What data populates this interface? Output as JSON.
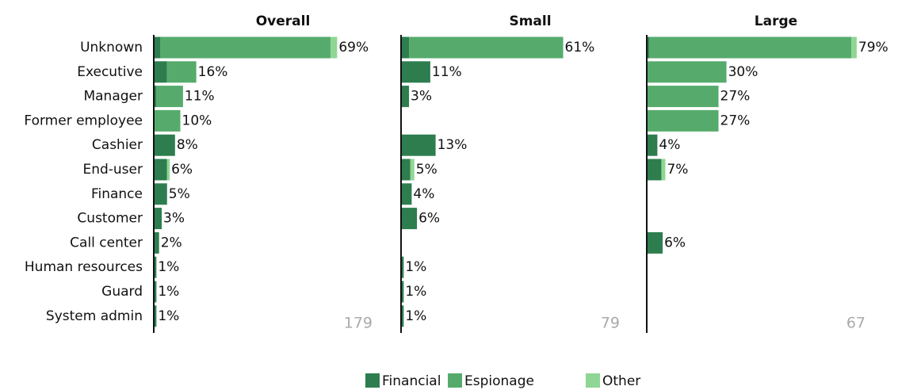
{
  "chart_data": [
    {
      "type": "bar",
      "title": "Overall",
      "n": 179,
      "categories": [
        "Unknown",
        "Executive",
        "Manager",
        "Former employee",
        "Cashier",
        "End-user",
        "Finance",
        "Customer",
        "Call center",
        "Human resources",
        "Guard",
        "System admin"
      ],
      "series": [
        {
          "name": "Financial",
          "color": "#2e7d4f",
          "values": [
            2.5,
            5,
            1,
            null,
            8,
            5,
            5,
            3,
            2,
            1,
            1,
            1
          ]
        },
        {
          "name": "Espionage",
          "color": "#56ab6c",
          "values": [
            64,
            11,
            10,
            10,
            null,
            null,
            null,
            null,
            null,
            null,
            null,
            null
          ]
        },
        {
          "name": "Other",
          "color": "#8fd694",
          "values": [
            2.5,
            null,
            null,
            null,
            null,
            1,
            null,
            null,
            null,
            null,
            null,
            null
          ]
        }
      ],
      "value_labels": [
        "69%",
        "16%",
        "11%",
        "10%",
        "8%",
        "6%",
        "5%",
        "3%",
        "2%",
        "1%",
        "1%",
        "1%"
      ],
      "xlim": [
        0,
        85
      ]
    },
    {
      "type": "bar",
      "title": "Small",
      "n": 79,
      "series": [
        {
          "values": [
            3,
            11,
            3,
            null,
            13,
            3.5,
            4,
            6,
            null,
            1,
            1,
            1
          ]
        },
        {
          "values": [
            58,
            null,
            null,
            null,
            null,
            null,
            null,
            null,
            null,
            null,
            null,
            null
          ]
        },
        {
          "values": [
            null,
            null,
            null,
            null,
            null,
            1.5,
            null,
            null,
            null,
            null,
            null,
            null
          ]
        }
      ],
      "value_labels": [
        "61%",
        "11%",
        "3%",
        null,
        "13%",
        "5%",
        "4%",
        "6%",
        null,
        "1%",
        "1%",
        "1%"
      ],
      "xlim": [
        0,
        85
      ]
    },
    {
      "type": "bar",
      "title": "Large",
      "n": 67,
      "series": [
        {
          "values": [
            1,
            null,
            null,
            null,
            4,
            5.5,
            null,
            null,
            6,
            null,
            null,
            null
          ]
        },
        {
          "values": [
            76,
            30,
            27,
            27,
            null,
            null,
            null,
            null,
            null,
            null,
            null,
            null
          ]
        },
        {
          "values": [
            2,
            null,
            null,
            null,
            null,
            1.5,
            null,
            null,
            null,
            null,
            null,
            null
          ]
        }
      ],
      "value_labels": [
        "79%",
        "30%",
        "27%",
        "27%",
        "4%",
        "7%",
        null,
        null,
        "6%",
        null,
        null,
        null
      ],
      "xlim": [
        0,
        85
      ]
    }
  ]
}
